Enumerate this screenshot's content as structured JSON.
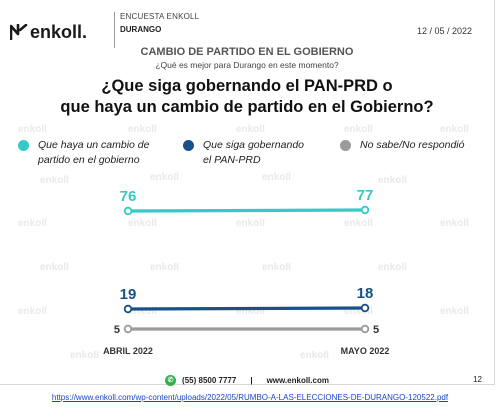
{
  "header": {
    "brand": "enkoll.",
    "survey_label": "ENCUESTA ENKOLL",
    "state": "DURANGO",
    "date": "12 / 05 / 2022"
  },
  "subtitle": "CAMBIO DE PARTIDO EN EL GOBIERNO",
  "question_small": "¿Qué es mejor para Durango en este momento?",
  "question_line1": "¿Que siga gobernando el PAN-PRD o",
  "question_line2": "que haya un cambio de partido en el Gobierno?",
  "legend": [
    {
      "line1": "Que haya un cambio de",
      "line2": "partido en el gobierno",
      "color": "#36c9c6"
    },
    {
      "line1": "Que siga gobernando",
      "line2": "el PAN-PRD",
      "color": "#17508a"
    },
    {
      "line1": "No sabe/No respondió",
      "line2": "",
      "color": "#9a9a9a"
    }
  ],
  "watermark": "enkoll",
  "chart_data": {
    "type": "line",
    "categories": [
      "ABRIL 2022",
      "MAYO 2022"
    ],
    "series": [
      {
        "name": "Que haya un cambio de partido en el gobierno",
        "values": [
          76,
          77
        ],
        "color": "#36c9c6"
      },
      {
        "name": "Que siga gobernando el PAN-PRD",
        "values": [
          19,
          18
        ],
        "color": "#17508a"
      },
      {
        "name": "No sabe/No respondió",
        "values": [
          5,
          5
        ],
        "color": "#9a9a9a"
      }
    ],
    "data_labels": true,
    "grid": false
  },
  "footer": {
    "phone": "(55) 8500 7777",
    "separator": "|",
    "website": "www.enkoll.com",
    "page": "12"
  },
  "source_url": "https://www.enkoll.com/wp-content/uploads/2022/05/RUMBO-A-LAS-ELECCIONES-DE-DURANGO-120522.pdf"
}
